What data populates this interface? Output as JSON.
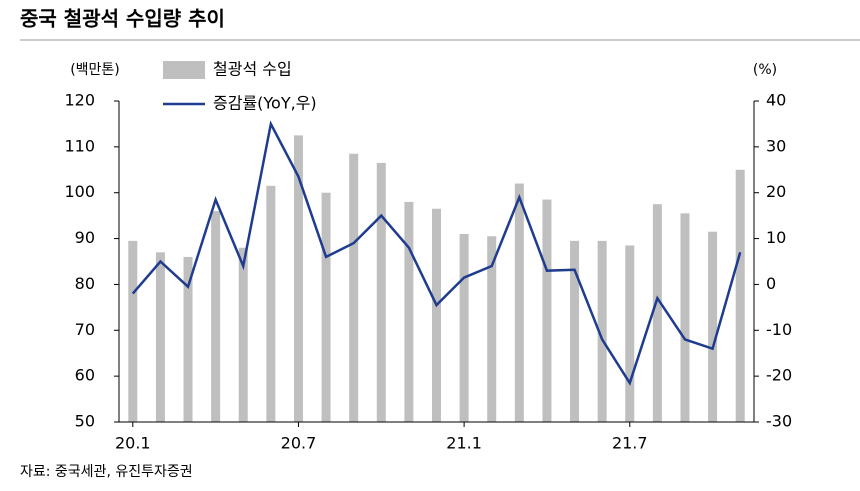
{
  "chart_data": {
    "type": "bar",
    "title": "중국 철광석 수입량 추이",
    "ylabel": "(백만톤)",
    "y2label": "(%)",
    "source": "자료: 중국세관, 유진투자증권",
    "categories": [
      "20.1",
      null,
      null,
      null,
      null,
      null,
      "20.7",
      null,
      null,
      null,
      null,
      null,
      "21.1",
      null,
      null,
      null,
      null,
      null,
      "21.7",
      null,
      null,
      null,
      null
    ],
    "series": [
      {
        "name": "철광석 수입",
        "type": "bar",
        "color": "#bfbfbf",
        "values": [
          89.5,
          87,
          86,
          96,
          88,
          101.5,
          112.5,
          100,
          108.5,
          106.5,
          98,
          96.5,
          91,
          90.5,
          102,
          98.5,
          89.5,
          89.5,
          88.5,
          97.5,
          95.5,
          91.5,
          105
        ]
      },
      {
        "name": "증감률(YoY,우)",
        "type": "line",
        "axis": "y2",
        "color": "#1f3c8f",
        "values": [
          -2,
          5,
          -0.5,
          18.5,
          4,
          35,
          23.5,
          6,
          9,
          15,
          8,
          -4.5,
          1.5,
          4,
          19,
          3,
          3.2,
          -12,
          -21.5,
          -3,
          -12,
          -14,
          7
        ]
      }
    ],
    "ylim": [
      50,
      120
    ],
    "yticks": [
      50,
      60,
      70,
      80,
      90,
      100,
      110,
      120
    ],
    "y2lim": [
      -30,
      40
    ],
    "y2ticks": [
      -30,
      -20,
      -10,
      0,
      10,
      20,
      30,
      40
    ]
  }
}
